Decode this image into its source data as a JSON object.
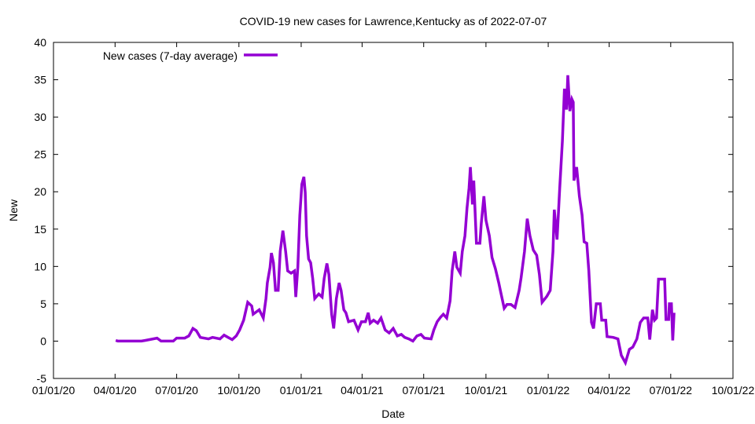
{
  "chart_data": {
    "type": "line",
    "title": "COVID-19 new cases for Lawrence,Kentucky as of 2022-07-07",
    "xlabel": "Date",
    "ylabel": "New",
    "x_units": "days since 2020-01-01",
    "xlim": [
      0,
      1004
    ],
    "ylim": [
      -5,
      40
    ],
    "yticks": [
      -5,
      0,
      5,
      10,
      15,
      20,
      25,
      30,
      35,
      40
    ],
    "xticks": [
      {
        "day": 0,
        "label": "01/01/20"
      },
      {
        "day": 91,
        "label": "04/01/20"
      },
      {
        "day": 182,
        "label": "07/01/20"
      },
      {
        "day": 274,
        "label": "10/01/20"
      },
      {
        "day": 366,
        "label": "01/01/21"
      },
      {
        "day": 456,
        "label": "04/01/21"
      },
      {
        "day": 547,
        "label": "07/01/21"
      },
      {
        "day": 639,
        "label": "10/01/21"
      },
      {
        "day": 731,
        "label": "01/01/22"
      },
      {
        "day": 821,
        "label": "04/01/22"
      },
      {
        "day": 912,
        "label": "07/01/22"
      },
      {
        "day": 1004,
        "label": "10/01/22"
      }
    ],
    "grid": false,
    "legend_position": "top-left",
    "series": [
      {
        "name": "New cases (7-day average)",
        "color": "#9400d3",
        "points": [
          [
            92,
            0.1
          ],
          [
            95,
            0
          ],
          [
            130,
            0
          ],
          [
            136,
            0.1
          ],
          [
            153,
            0.4
          ],
          [
            159,
            0
          ],
          [
            177,
            0
          ],
          [
            182,
            0.4
          ],
          [
            194,
            0.4
          ],
          [
            200,
            0.7
          ],
          [
            206,
            1.7
          ],
          [
            211,
            1.4
          ],
          [
            217,
            0.5
          ],
          [
            229,
            0.3
          ],
          [
            235,
            0.5
          ],
          [
            246,
            0.3
          ],
          [
            252,
            0.8
          ],
          [
            258,
            0.5
          ],
          [
            264,
            0.2
          ],
          [
            270,
            0.7
          ],
          [
            275,
            1.5
          ],
          [
            281,
            2.8
          ],
          [
            287,
            5.2
          ],
          [
            293,
            4.7
          ],
          [
            295,
            3.6
          ],
          [
            304,
            4.2
          ],
          [
            310,
            3.1
          ],
          [
            314,
            5.7
          ],
          [
            316,
            7.8
          ],
          [
            320,
            9.9
          ],
          [
            322,
            11.8
          ],
          [
            325,
            10.5
          ],
          [
            328,
            6.8
          ],
          [
            332,
            6.8
          ],
          [
            335,
            12
          ],
          [
            339,
            14.8
          ],
          [
            343,
            12
          ],
          [
            346,
            9.4
          ],
          [
            351,
            9.1
          ],
          [
            356,
            9.4
          ],
          [
            358,
            5.9
          ],
          [
            361,
            9.9
          ],
          [
            364,
            16.8
          ],
          [
            367,
            21
          ],
          [
            370,
            22
          ],
          [
            372,
            19.9
          ],
          [
            374,
            14.1
          ],
          [
            377,
            11
          ],
          [
            380,
            10.5
          ],
          [
            383,
            8.4
          ],
          [
            386,
            5.7
          ],
          [
            392,
            6.3
          ],
          [
            397,
            5.9
          ],
          [
            400,
            8.4
          ],
          [
            404,
            10.4
          ],
          [
            407,
            8.9
          ],
          [
            411,
            3.6
          ],
          [
            414,
            1.7
          ],
          [
            418,
            5.7
          ],
          [
            422,
            7.8
          ],
          [
            425,
            6.8
          ],
          [
            429,
            4.2
          ],
          [
            432,
            3.8
          ],
          [
            436,
            2.6
          ],
          [
            444,
            2.8
          ],
          [
            450,
            1.5
          ],
          [
            455,
            2.6
          ],
          [
            461,
            2.6
          ],
          [
            465,
            3.8
          ],
          [
            468,
            2.4
          ],
          [
            473,
            2.8
          ],
          [
            479,
            2.4
          ],
          [
            484,
            3.1
          ],
          [
            490,
            1.5
          ],
          [
            496,
            1.1
          ],
          [
            502,
            1.7
          ],
          [
            508,
            0.7
          ],
          [
            514,
            0.9
          ],
          [
            519,
            0.5
          ],
          [
            525,
            0.3
          ],
          [
            531,
            0
          ],
          [
            537,
            0.7
          ],
          [
            543,
            0.9
          ],
          [
            548,
            0.4
          ],
          [
            558,
            0.3
          ],
          [
            562,
            1.5
          ],
          [
            567,
            2.6
          ],
          [
            572,
            3.2
          ],
          [
            576,
            3.6
          ],
          [
            581,
            3.1
          ],
          [
            586,
            5.4
          ],
          [
            589,
            9.4
          ],
          [
            593,
            12
          ],
          [
            596,
            9.9
          ],
          [
            601,
            9.1
          ],
          [
            604,
            12
          ],
          [
            608,
            14.1
          ],
          [
            611,
            17.8
          ],
          [
            614,
            20.5
          ],
          [
            616,
            23.3
          ],
          [
            619,
            18.3
          ],
          [
            621,
            21.5
          ],
          [
            625,
            13.1
          ],
          [
            630,
            13.1
          ],
          [
            632,
            15.7
          ],
          [
            636,
            19.4
          ],
          [
            639,
            16.2
          ],
          [
            644,
            14.1
          ],
          [
            648,
            11.2
          ],
          [
            653,
            9.7
          ],
          [
            658,
            7.8
          ],
          [
            661,
            6.5
          ],
          [
            666,
            4.4
          ],
          [
            670,
            4.9
          ],
          [
            676,
            4.9
          ],
          [
            682,
            4.5
          ],
          [
            688,
            6.8
          ],
          [
            691,
            8.5
          ],
          [
            696,
            12
          ],
          [
            700,
            16.4
          ],
          [
            704,
            14.1
          ],
          [
            709,
            12.2
          ],
          [
            714,
            11.5
          ],
          [
            718,
            8.9
          ],
          [
            722,
            5.2
          ],
          [
            729,
            6
          ],
          [
            734,
            6.8
          ],
          [
            738,
            12
          ],
          [
            740,
            17.6
          ],
          [
            744,
            13.6
          ],
          [
            748,
            20.5
          ],
          [
            752,
            26.8
          ],
          [
            755,
            33.8
          ],
          [
            758,
            31
          ],
          [
            760,
            35.6
          ],
          [
            763,
            30.8
          ],
          [
            766,
            32.4
          ],
          [
            768,
            32
          ],
          [
            769,
            21.5
          ],
          [
            773,
            23.3
          ],
          [
            777,
            19.4
          ],
          [
            781,
            16.9
          ],
          [
            784,
            13.3
          ],
          [
            788,
            13.1
          ],
          [
            791,
            9.4
          ],
          [
            795,
            2.5
          ],
          [
            798,
            1.7
          ],
          [
            802,
            5
          ],
          [
            808,
            5
          ],
          [
            810,
            2.8
          ],
          [
            816,
            2.8
          ],
          [
            818,
            0.6
          ],
          [
            827,
            0.5
          ],
          [
            834,
            0.3
          ],
          [
            839,
            -1.9
          ],
          [
            845,
            -2.9
          ],
          [
            851,
            -1.1
          ],
          [
            856,
            -0.8
          ],
          [
            862,
            0.3
          ],
          [
            867,
            2.5
          ],
          [
            872,
            3.1
          ],
          [
            878,
            3.1
          ],
          [
            881,
            0.2
          ],
          [
            885,
            4.2
          ],
          [
            888,
            2.8
          ],
          [
            891,
            3.1
          ],
          [
            894,
            8.3
          ],
          [
            903,
            8.3
          ],
          [
            905,
            2.9
          ],
          [
            909,
            2.9
          ],
          [
            910,
            5
          ],
          [
            913,
            5
          ],
          [
            915,
            0.1
          ],
          [
            917,
            3.8
          ]
        ]
      }
    ]
  }
}
